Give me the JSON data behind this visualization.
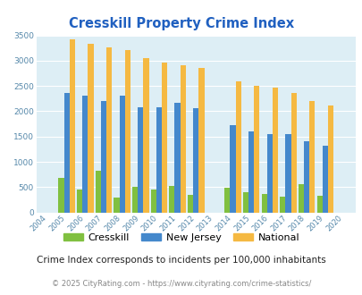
{
  "title": "Cresskill Property Crime Index",
  "title_color": "#2060c0",
  "years": [
    2004,
    2005,
    2006,
    2007,
    2008,
    2009,
    2010,
    2011,
    2012,
    2013,
    2014,
    2015,
    2016,
    2017,
    2018,
    2019,
    2020
  ],
  "cresskill": [
    0,
    680,
    450,
    820,
    300,
    500,
    460,
    520,
    340,
    0,
    480,
    400,
    360,
    310,
    560,
    320,
    0
  ],
  "new_jersey": [
    0,
    2360,
    2300,
    2200,
    2300,
    2075,
    2075,
    2160,
    2060,
    0,
    1720,
    1610,
    1540,
    1540,
    1410,
    1310,
    0
  ],
  "national": [
    0,
    3420,
    3340,
    3270,
    3210,
    3050,
    2960,
    2910,
    2860,
    0,
    2590,
    2500,
    2470,
    2370,
    2200,
    2110,
    0
  ],
  "cresskill_color": "#80c040",
  "nj_color": "#4488cc",
  "national_color": "#f5b942",
  "bg_color": "#ddeef5",
  "ylim": [
    0,
    3500
  ],
  "yticks": [
    0,
    500,
    1000,
    1500,
    2000,
    2500,
    3000,
    3500
  ],
  "subtitle": "Crime Index corresponds to incidents per 100,000 inhabitants",
  "footer": "© 2025 CityRating.com - https://www.cityrating.com/crime-statistics/",
  "legend_labels": [
    "Cresskill",
    "New Jersey",
    "National"
  ]
}
